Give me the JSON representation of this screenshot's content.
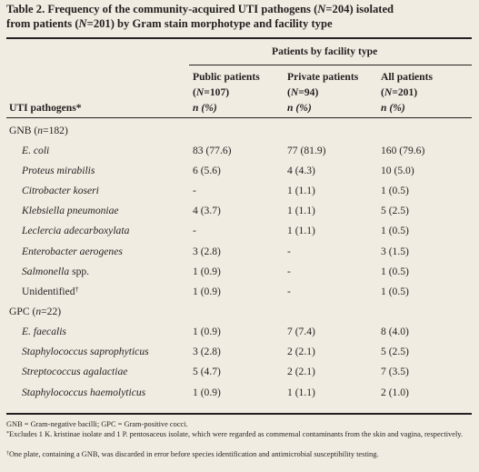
{
  "title": {
    "pre1": "Table 2. Frequency of the community-acquired UTI pathogens (",
    "n1": "N",
    "mid1": "=204) isolated",
    "pre2": "from patients (",
    "n2": "N",
    "mid2": "=201) by Gram stain morphotype and facility type"
  },
  "header": {
    "group": "Patients by facility type",
    "stub": "UTI pathogens*",
    "columns": [
      {
        "name": "Public patients",
        "n_label": "(N=107)",
        "unit": "n (%)"
      },
      {
        "name": "Private patients",
        "n_label": "(N=94)",
        "unit": "n (%)"
      },
      {
        "name": "All patients",
        "n_label": "(N=201)",
        "unit": "n (%)"
      }
    ]
  },
  "groups": [
    {
      "label": "GNB (n=182)",
      "rows": [
        {
          "name": "E. coli",
          "values": [
            "83 (77.6)",
            "77 (81.9)",
            "160 (79.6)"
          ]
        },
        {
          "name": "Proteus mirabilis",
          "values": [
            "6 (5.6)",
            "4 (4.3)",
            "10 (5.0)"
          ]
        },
        {
          "name": "Citrobacter koseri",
          "values": [
            "-",
            "1 (1.1)",
            "1 (0.5)"
          ]
        },
        {
          "name": "Klebsiella pneumoniae",
          "values": [
            "4 (3.7)",
            "1 (1.1)",
            "5 (2.5)"
          ]
        },
        {
          "name": "Leclercia adecarboxylata",
          "values": [
            "-",
            "1 (1.1)",
            "1 (0.5)"
          ]
        },
        {
          "name": "Enterobacter aerogenes",
          "values": [
            "3 (2.8)",
            "-",
            "3 (1.5)"
          ]
        },
        {
          "name": "Salmonella spp.",
          "values": [
            "1 (0.9)",
            "-",
            "1 (0.5)"
          ]
        },
        {
          "name": "Unidentified",
          "mark": "†",
          "values": [
            "1 (0.9)",
            "-",
            "1 (0.5)"
          ]
        }
      ]
    },
    {
      "label": "GPC (n=22)",
      "rows": [
        {
          "name": "E. faecalis",
          "values": [
            "1 (0.9)",
            "7 (7.4)",
            "8 (4.0)"
          ]
        },
        {
          "name": "Staphylococcus saprophyticus",
          "values": [
            "3 (2.8)",
            "2 (2.1)",
            "5 (2.5)"
          ]
        },
        {
          "name": "Streptococcus agalactiae",
          "values": [
            "5 (4.7)",
            "2 (2.1)",
            "7 (3.5)"
          ]
        },
        {
          "name": "Staphylococcus haemolyticus",
          "values": [
            "1 (0.9)",
            "1 (1.1)",
            "2 (1.0)"
          ]
        }
      ]
    }
  ],
  "footnotes": {
    "abbrev": "GNB = Gram-negative bacilli; GPC = Gram-positive cocci.",
    "star_mark": "*",
    "star_text": "Excludes 1 K. kristinae isolate and 1 P. pentosaceus isolate, which were regarded as commensal contaminants from the skin and vagina, respectively.",
    "dagger_mark": "†",
    "dagger_text": "One plate, containing a GNB, was discarded in error before species identification and antimicrobial susceptibility testing."
  }
}
